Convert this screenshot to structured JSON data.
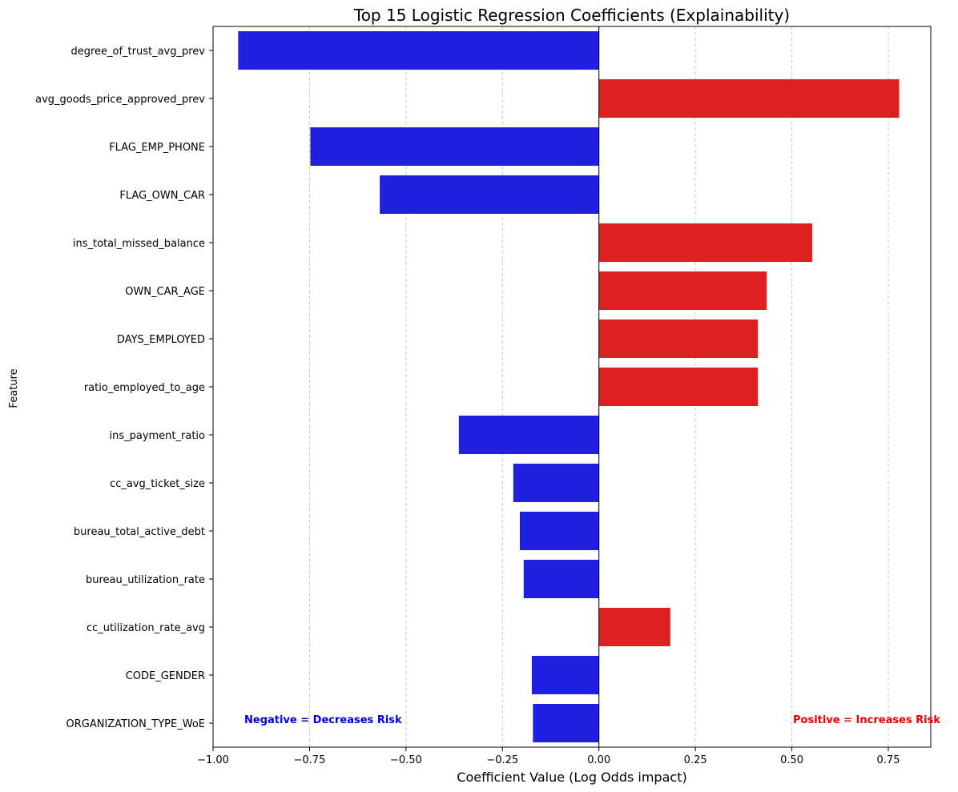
{
  "chart_data": {
    "type": "bar",
    "orientation": "horizontal",
    "title": "Top 15 Logistic Regression Coefficients (Explainability)",
    "xlabel": "Coefficient Value (Log Odds impact)",
    "ylabel": "Feature",
    "xlim": [
      -1.0,
      0.86
    ],
    "xticks": [
      -1.0,
      -0.75,
      -0.5,
      -0.25,
      0.0,
      0.25,
      0.5,
      0.75
    ],
    "xtick_labels": [
      "−1.00",
      "−0.75",
      "−0.50",
      "−0.25",
      "0.00",
      "0.25",
      "0.50",
      "0.75"
    ],
    "grid": "x-dashed",
    "categories": [
      "degree_of_trust_avg_prev",
      "avg_goods_price_approved_prev",
      "FLAG_EMP_PHONE",
      "FLAG_OWN_CAR",
      "ins_total_missed_balance",
      "OWN_CAR_AGE",
      "DAYS_EMPLOYED",
      "ratio_employed_to_age",
      "ins_payment_ratio",
      "cc_avg_ticket_size",
      "bureau_total_active_debt",
      "bureau_utilization_rate",
      "cc_utilization_rate_avg",
      "CODE_GENDER",
      "ORGANIZATION_TYPE_WoE"
    ],
    "values": [
      -0.935,
      0.778,
      -0.748,
      -0.568,
      0.553,
      0.435,
      0.412,
      0.412,
      -0.363,
      -0.222,
      -0.205,
      -0.195,
      0.185,
      -0.174,
      -0.171
    ],
    "colors": {
      "negative": "#2020e0",
      "positive": "#df2020"
    },
    "annotations": {
      "negative": {
        "text": "Negative = Decreases Risk",
        "color": "#0000dd"
      },
      "positive": {
        "text": "Positive = Increases Risk",
        "color": "#ee0000"
      }
    }
  }
}
